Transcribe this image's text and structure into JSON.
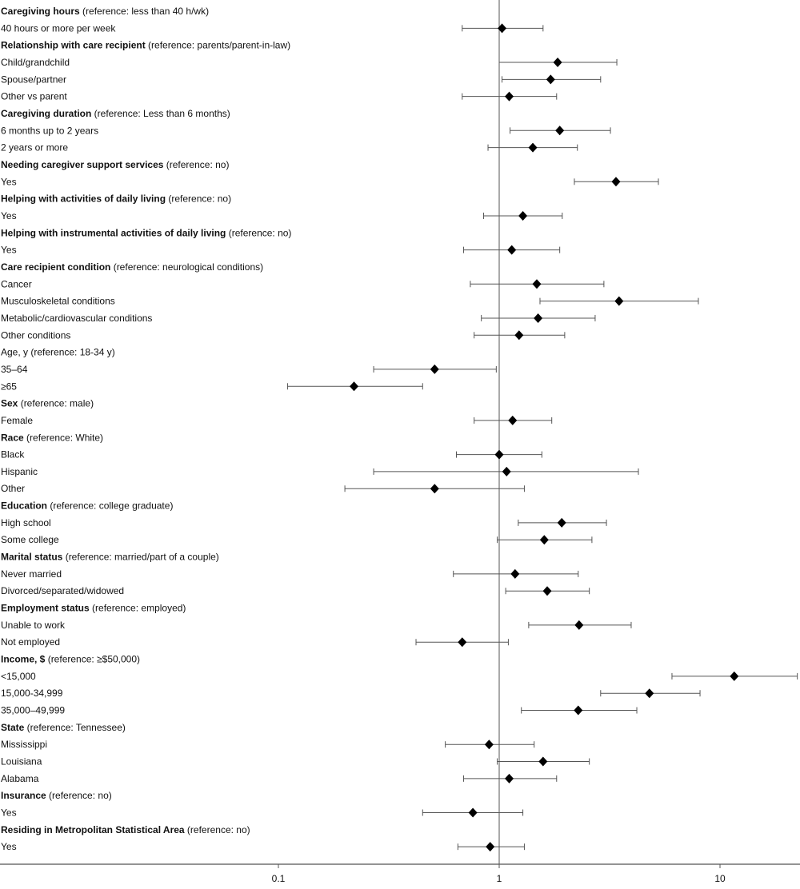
{
  "chart_data": {
    "type": "forest",
    "x_scale": "log",
    "xlim": [
      0.01,
      25
    ],
    "x_ticks": [
      "0.1",
      "1",
      "10"
    ],
    "reference_line": 1,
    "grid": false,
    "colors": {
      "marker": "#000000",
      "ci": "#555555",
      "axis": "#555555"
    },
    "rows": [
      {
        "bold": "Caregiving hours",
        "label": " (reference: less than 40 h/wk)"
      },
      {
        "label": "40 hours or more per week",
        "or": 1.03,
        "lo": 0.68,
        "hi": 1.58
      },
      {
        "bold": "Relationship with care recipient",
        "label": " (reference: parents/parent-in-law)"
      },
      {
        "label": "Child/grandchild",
        "or": 1.84,
        "lo": 1.0,
        "hi": 3.41
      },
      {
        "label": "Spouse/partner",
        "or": 1.71,
        "lo": 1.03,
        "hi": 2.88
      },
      {
        "label": "Other vs parent",
        "or": 1.11,
        "lo": 0.68,
        "hi": 1.82
      },
      {
        "bold": "Caregiving duration",
        "label": " (reference: Less than 6 months)"
      },
      {
        "label": "6 months up to 2 years",
        "or": 1.88,
        "lo": 1.12,
        "hi": 3.19
      },
      {
        "label": "2 years or more",
        "or": 1.42,
        "lo": 0.89,
        "hi": 2.26
      },
      {
        "bold": "Needing caregiver support services",
        "label": " (reference: no)"
      },
      {
        "label": "Yes",
        "or": 3.38,
        "lo": 2.19,
        "hi": 5.26
      },
      {
        "bold": "Helping with activities of daily living",
        "label": " (reference: no)"
      },
      {
        "label": "Yes",
        "or": 1.28,
        "lo": 0.85,
        "hi": 1.93
      },
      {
        "bold": "Helping with instrumental activities of daily living",
        "label": " (reference: no)"
      },
      {
        "label": "Yes",
        "or": 1.14,
        "lo": 0.69,
        "hi": 1.88
      },
      {
        "bold": "Care recipient condition",
        "label": " (reference: neurological conditions)"
      },
      {
        "label": "Cancer",
        "or": 1.48,
        "lo": 0.74,
        "hi": 2.98
      },
      {
        "label": "Musculoskeletal conditions",
        "or": 3.49,
        "lo": 1.53,
        "hi": 7.98
      },
      {
        "label": "Metabolic/cardiovascular conditions",
        "or": 1.5,
        "lo": 0.83,
        "hi": 2.72
      },
      {
        "label": "Other conditions",
        "or": 1.23,
        "lo": 0.77,
        "hi": 1.98
      },
      {
        "bold": "",
        "label": "Age, y (reference: 18-34 y)"
      },
      {
        "label": "35–64",
        "or": 0.51,
        "lo": 0.27,
        "hi": 0.97
      },
      {
        "label": "≥65",
        "or": 0.22,
        "lo": 0.11,
        "hi": 0.45
      },
      {
        "bold": "Sex",
        "label": " (reference: male)"
      },
      {
        "label": "Female",
        "or": 1.15,
        "lo": 0.77,
        "hi": 1.73
      },
      {
        "bold": "Race",
        "label": " (reference: White)"
      },
      {
        "label": "Black",
        "or": 1.0,
        "lo": 0.64,
        "hi": 1.56
      },
      {
        "label": "Hispanic",
        "or": 1.08,
        "lo": 0.27,
        "hi": 4.27
      },
      {
        "label": "Other",
        "or": 0.51,
        "lo": 0.2,
        "hi": 1.3
      },
      {
        "bold": "Education",
        "label": " (reference: college graduate)"
      },
      {
        "label": "High school",
        "or": 1.92,
        "lo": 1.22,
        "hi": 3.06
      },
      {
        "label": "Some college",
        "or": 1.6,
        "lo": 0.98,
        "hi": 2.63
      },
      {
        "bold": "Marital status",
        "label": " (reference: married/part of a couple)"
      },
      {
        "label": "Never married",
        "or": 1.18,
        "lo": 0.62,
        "hi": 2.28
      },
      {
        "label": "Divorced/separated/widowed",
        "or": 1.65,
        "lo": 1.07,
        "hi": 2.56
      },
      {
        "bold": "Employment status",
        "label": " (reference: employed)"
      },
      {
        "label": "Unable to work",
        "or": 2.3,
        "lo": 1.36,
        "hi": 3.96
      },
      {
        "label": "Not employed",
        "or": 0.68,
        "lo": 0.42,
        "hi": 1.1
      },
      {
        "bold": "Income, $",
        "label": " (reference: ≥$50,000)"
      },
      {
        "label": "<15,000",
        "or": 11.6,
        "lo": 6.06,
        "hi": 22.4
      },
      {
        "label": "15,000-34,999",
        "or": 4.79,
        "lo": 2.88,
        "hi": 8.12
      },
      {
        "label": "35,000–49,999",
        "or": 2.28,
        "lo": 1.26,
        "hi": 4.2
      },
      {
        "bold": "State",
        "label": " (reference: Tennessee)"
      },
      {
        "label": "Mississippi",
        "or": 0.9,
        "lo": 0.57,
        "hi": 1.44
      },
      {
        "label": "Louisiana",
        "or": 1.58,
        "lo": 0.98,
        "hi": 2.56
      },
      {
        "label": "Alabama",
        "or": 1.11,
        "lo": 0.69,
        "hi": 1.82
      },
      {
        "bold": "Insurance",
        "label": " (reference: no)"
      },
      {
        "label": "Yes",
        "or": 0.76,
        "lo": 0.45,
        "hi": 1.28
      },
      {
        "bold": "Residing in Metropolitan Statistical Area",
        "label": " (reference: no)"
      },
      {
        "label": "Yes",
        "or": 0.91,
        "lo": 0.65,
        "hi": 1.3
      }
    ]
  }
}
